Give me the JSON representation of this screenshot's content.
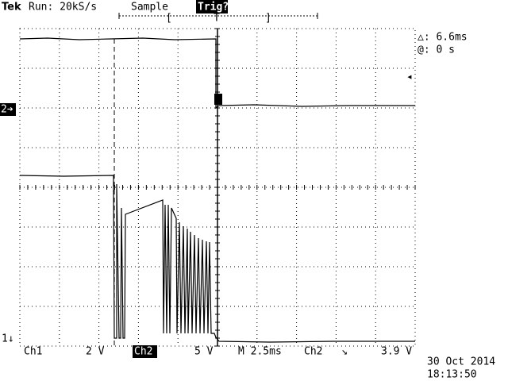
{
  "header": {
    "brand": "Tek",
    "run": "Run: 20kS/s",
    "mode": "Sample",
    "trigger": "Trig?",
    "bracket_left": "[",
    "trigger_pos": "T",
    "bracket_right": "]"
  },
  "readout": {
    "delta": "△: 6.6ms",
    "at": "@: 0 s"
  },
  "markers": {
    "ch2": "2➔",
    "ch1": "1↓",
    "trigger_level": "◂"
  },
  "footer": {
    "ch1": "Ch1",
    "ch1_scale": "2 V",
    "ch2": "Ch2",
    "ch2_scale": "5 V",
    "timebase": "M 2.5ms",
    "trig_source": "Ch2",
    "trig_slope": "↘",
    "trig_level": "3.9 V",
    "date": "30 Oct 2014",
    "time": "18:13:50"
  }
}
